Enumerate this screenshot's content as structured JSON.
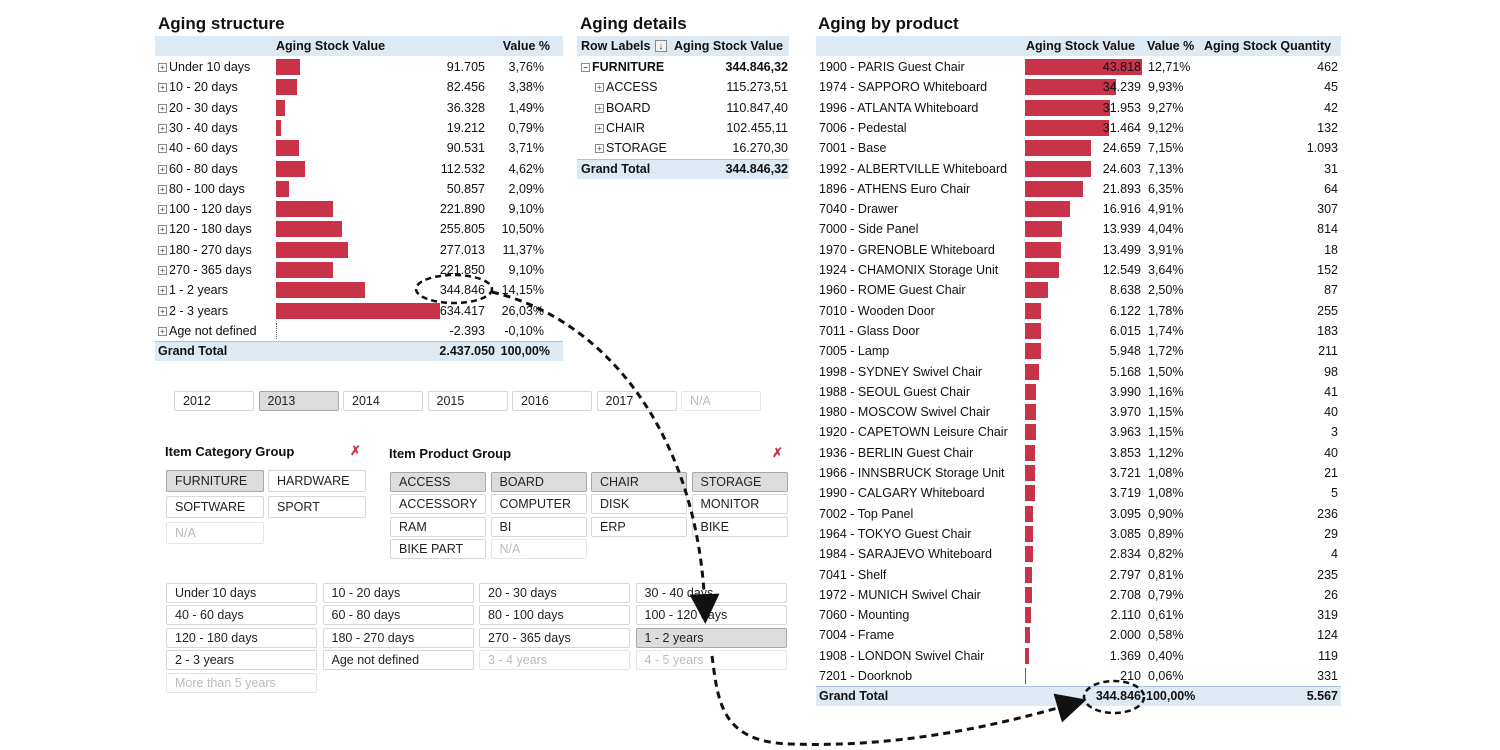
{
  "aging_structure": {
    "title": "Aging structure",
    "col_value": "Aging Stock Value",
    "col_pct": "Value %",
    "rows": [
      {
        "label": "Under 10 days",
        "value": "91.705",
        "pct": "3,76%",
        "v": 91705
      },
      {
        "label": "10 - 20 days",
        "value": "82.456",
        "pct": "3,38%",
        "v": 82456
      },
      {
        "label": "20 - 30 days",
        "value": "36.328",
        "pct": "1,49%",
        "v": 36328
      },
      {
        "label": "30 - 40 days",
        "value": "19.212",
        "pct": "0,79%",
        "v": 19212
      },
      {
        "label": "40 - 60 days",
        "value": "90.531",
        "pct": "3,71%",
        "v": 90531
      },
      {
        "label": "60 - 80 days",
        "value": "112.532",
        "pct": "4,62%",
        "v": 112532
      },
      {
        "label": "80 - 100 days",
        "value": "50.857",
        "pct": "2,09%",
        "v": 50857
      },
      {
        "label": "100 - 120 days",
        "value": "221.890",
        "pct": "9,10%",
        "v": 221890
      },
      {
        "label": "120 - 180 days",
        "value": "255.805",
        "pct": "10,50%",
        "v": 255805
      },
      {
        "label": "180 - 270 days",
        "value": "277.013",
        "pct": "11,37%",
        "v": 277013
      },
      {
        "label": "270 - 365 days",
        "value": "221.850",
        "pct": "9,10%",
        "v": 221850
      },
      {
        "label": "1 - 2 years",
        "value": "344.846",
        "pct": "14,15%",
        "v": 344846
      },
      {
        "label": "2 - 3 years",
        "value": "634.417",
        "pct": "26,03%",
        "v": 634417
      },
      {
        "label": "Age not defined",
        "value": "-2.393",
        "pct": "-0,10%",
        "v": -2393
      }
    ],
    "total_label": "Grand Total",
    "total_value": "2.437.050",
    "total_pct": "100,00%"
  },
  "aging_details": {
    "title": "Aging details",
    "col_labels": "Row Labels",
    "col_value": "Aging Stock Value",
    "group": {
      "label": "FURNITURE",
      "value": "344.846,32"
    },
    "rows": [
      {
        "label": "ACCESS",
        "value": "115.273,51"
      },
      {
        "label": "BOARD",
        "value": "110.847,40"
      },
      {
        "label": "CHAIR",
        "value": "102.455,11"
      },
      {
        "label": "STORAGE",
        "value": "16.270,30"
      }
    ],
    "total_label": "Grand Total",
    "total_value": "344.846,32"
  },
  "aging_by_product": {
    "title": "Aging by product",
    "col_value": "Aging Stock Value",
    "col_pct": "Value %",
    "col_qty": "Aging Stock Quantity",
    "rows": [
      {
        "label": "1900 - PARIS Guest Chair",
        "value": "43.818",
        "pct": "12,71%",
        "qty": "462",
        "v": 43818
      },
      {
        "label": "1974 - SAPPORO Whiteboard",
        "value": "34.239",
        "pct": "9,93%",
        "qty": "45",
        "v": 34239
      },
      {
        "label": "1996 - ATLANTA Whiteboard",
        "value": "31.953",
        "pct": "9,27%",
        "qty": "42",
        "v": 31953
      },
      {
        "label": "7006 - Pedestal",
        "value": "31.464",
        "pct": "9,12%",
        "qty": "132",
        "v": 31464
      },
      {
        "label": "7001 - Base",
        "value": "24.659",
        "pct": "7,15%",
        "qty": "1.093",
        "v": 24659
      },
      {
        "label": "1992 - ALBERTVILLE Whiteboard",
        "value": "24.603",
        "pct": "7,13%",
        "qty": "31",
        "v": 24603
      },
      {
        "label": "1896 - ATHENS Euro Chair",
        "value": "21.893",
        "pct": "6,35%",
        "qty": "64",
        "v": 21893
      },
      {
        "label": "7040 - Drawer",
        "value": "16.916",
        "pct": "4,91%",
        "qty": "307",
        "v": 16916
      },
      {
        "label": "7000 - Side Panel",
        "value": "13.939",
        "pct": "4,04%",
        "qty": "814",
        "v": 13939
      },
      {
        "label": "1970 - GRENOBLE Whiteboard",
        "value": "13.499",
        "pct": "3,91%",
        "qty": "18",
        "v": 13499
      },
      {
        "label": "1924 - CHAMONIX Storage Unit",
        "value": "12.549",
        "pct": "3,64%",
        "qty": "152",
        "v": 12549
      },
      {
        "label": "1960 - ROME Guest Chair",
        "value": "8.638",
        "pct": "2,50%",
        "qty": "87",
        "v": 8638
      },
      {
        "label": "7010 - Wooden Door",
        "value": "6.122",
        "pct": "1,78%",
        "qty": "255",
        "v": 6122
      },
      {
        "label": "7011 - Glass Door",
        "value": "6.015",
        "pct": "1,74%",
        "qty": "183",
        "v": 6015
      },
      {
        "label": "7005 - Lamp",
        "value": "5.948",
        "pct": "1,72%",
        "qty": "211",
        "v": 5948
      },
      {
        "label": "1998 - SYDNEY Swivel Chair",
        "value": "5.168",
        "pct": "1,50%",
        "qty": "98",
        "v": 5168
      },
      {
        "label": "1988 - SEOUL Guest Chair",
        "value": "3.990",
        "pct": "1,16%",
        "qty": "41",
        "v": 3990
      },
      {
        "label": "1980 - MOSCOW Swivel Chair",
        "value": "3.970",
        "pct": "1,15%",
        "qty": "40",
        "v": 3970
      },
      {
        "label": "1920 - CAPETOWN Leisure Chair",
        "value": "3.963",
        "pct": "1,15%",
        "qty": "3",
        "v": 3963
      },
      {
        "label": "1936 - BERLIN Guest Chair",
        "value": "3.853",
        "pct": "1,12%",
        "qty": "40",
        "v": 3853
      },
      {
        "label": "1966 - INNSBRUCK Storage Unit",
        "value": "3.721",
        "pct": "1,08%",
        "qty": "21",
        "v": 3721
      },
      {
        "label": "1990 - CALGARY Whiteboard",
        "value": "3.719",
        "pct": "1,08%",
        "qty": "5",
        "v": 3719
      },
      {
        "label": "7002 - Top Panel",
        "value": "3.095",
        "pct": "0,90%",
        "qty": "236",
        "v": 3095
      },
      {
        "label": "1964 - TOKYO Guest Chair",
        "value": "3.085",
        "pct": "0,89%",
        "qty": "29",
        "v": 3085
      },
      {
        "label": "1984 - SARAJEVO Whiteboard",
        "value": "2.834",
        "pct": "0,82%",
        "qty": "4",
        "v": 2834
      },
      {
        "label": "7041 - Shelf",
        "value": "2.797",
        "pct": "0,81%",
        "qty": "235",
        "v": 2797
      },
      {
        "label": "1972 - MUNICH Swivel Chair",
        "value": "2.708",
        "pct": "0,79%",
        "qty": "26",
        "v": 2708
      },
      {
        "label": "7060 - Mounting",
        "value": "2.110",
        "pct": "0,61%",
        "qty": "319",
        "v": 2110
      },
      {
        "label": "7004 - Frame",
        "value": "2.000",
        "pct": "0,58%",
        "qty": "124",
        "v": 2000
      },
      {
        "label": "1908 - LONDON Swivel Chair",
        "value": "1.369",
        "pct": "0,40%",
        "qty": "119",
        "v": 1369
      },
      {
        "label": "7201 - Doorknob",
        "value": "210",
        "pct": "0,06%",
        "qty": "331",
        "v": 210
      }
    ],
    "total_label": "Grand Total",
    "total_value": "344.846",
    "total_pct": "100,00%",
    "total_qty": "5.567"
  },
  "year_slicer": {
    "items": [
      {
        "label": "2012",
        "state": "normal"
      },
      {
        "label": "2013",
        "state": "selected"
      },
      {
        "label": "2014",
        "state": "normal"
      },
      {
        "label": "2015",
        "state": "normal"
      },
      {
        "label": "2016",
        "state": "normal"
      },
      {
        "label": "2017",
        "state": "normal"
      },
      {
        "label": "N/A",
        "state": "disabled"
      }
    ]
  },
  "category_slicer": {
    "title": "Item Category Group",
    "items": [
      {
        "label": "FURNITURE",
        "state": "selected"
      },
      {
        "label": "HARDWARE",
        "state": "normal"
      },
      {
        "label": "SOFTWARE",
        "state": "normal"
      },
      {
        "label": "SPORT",
        "state": "normal"
      },
      {
        "label": "N/A",
        "state": "disabled"
      }
    ]
  },
  "product_slicer": {
    "title": "Item Product Group",
    "items": [
      {
        "label": "ACCESS",
        "state": "selected"
      },
      {
        "label": "BOARD",
        "state": "selected"
      },
      {
        "label": "CHAIR",
        "state": "selected"
      },
      {
        "label": "STORAGE",
        "state": "selected"
      },
      {
        "label": "ACCESSORY",
        "state": "normal"
      },
      {
        "label": "COMPUTER",
        "state": "normal"
      },
      {
        "label": "DISK",
        "state": "normal"
      },
      {
        "label": "MONITOR",
        "state": "normal"
      },
      {
        "label": "RAM",
        "state": "normal"
      },
      {
        "label": "BI",
        "state": "normal"
      },
      {
        "label": "ERP",
        "state": "normal"
      },
      {
        "label": "BIKE",
        "state": "normal"
      },
      {
        "label": "BIKE PART",
        "state": "normal"
      },
      {
        "label": "N/A",
        "state": "disabled"
      }
    ]
  },
  "age_slicer": {
    "items": [
      {
        "label": "Under 10 days",
        "state": "normal"
      },
      {
        "label": "10 - 20 days",
        "state": "normal"
      },
      {
        "label": "20 - 30 days",
        "state": "normal"
      },
      {
        "label": "30 - 40 days",
        "state": "normal"
      },
      {
        "label": "40 - 60 days",
        "state": "normal"
      },
      {
        "label": "60 - 80 days",
        "state": "normal"
      },
      {
        "label": "80 - 100 days",
        "state": "normal"
      },
      {
        "label": "100 - 120 days",
        "state": "normal"
      },
      {
        "label": "120 - 180 days",
        "state": "normal"
      },
      {
        "label": "180 - 270 days",
        "state": "normal"
      },
      {
        "label": "270 - 365 days",
        "state": "normal"
      },
      {
        "label": "1 - 2 years",
        "state": "selected"
      },
      {
        "label": "2 - 3 years",
        "state": "normal"
      },
      {
        "label": "Age not defined",
        "state": "normal"
      },
      {
        "label": "3 - 4 years",
        "state": "disabled"
      },
      {
        "label": "4 - 5 years",
        "state": "disabled"
      },
      {
        "label": "More than 5 years",
        "state": "disabled"
      }
    ]
  },
  "colors": {
    "bar": "#c8334a",
    "header_bg": "#dde9f3",
    "slicer_selected": "#dcdcdc"
  }
}
